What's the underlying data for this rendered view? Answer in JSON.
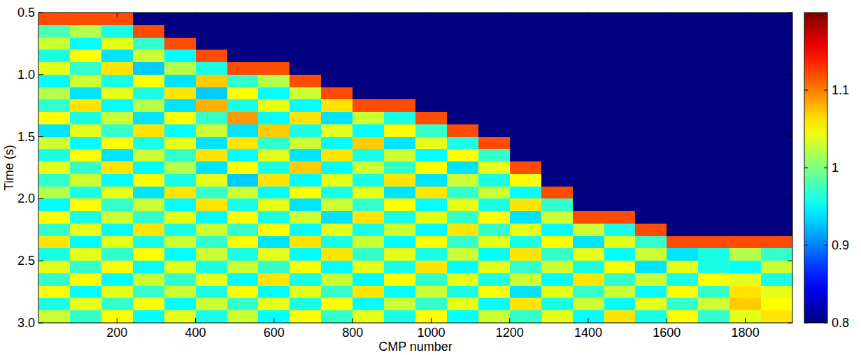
{
  "chart_data": {
    "type": "heatmap",
    "x_label": "CMP number",
    "y_label": "Time (s)",
    "xlim": [
      0,
      1920
    ],
    "ylim": [
      0.5,
      3.0
    ],
    "xticks": [
      200,
      400,
      600,
      800,
      1000,
      1200,
      1400,
      1600,
      1800
    ],
    "yticks": [
      0.5,
      {
        "value": 1.0,
        "label": "1.0"
      },
      1.5,
      {
        "value": 2.0,
        "label": "2.0"
      },
      2.5,
      {
        "value": 3.0,
        "label": "3.0"
      }
    ],
    "x_bins": [
      0,
      80,
      160,
      240,
      320,
      400,
      480,
      560,
      640,
      720,
      800,
      880,
      960,
      1040,
      1120,
      1200,
      1280,
      1360,
      1440,
      1520,
      1600,
      1680,
      1760,
      1840,
      1920
    ],
    "y_bins": [
      0.5,
      0.6,
      0.7,
      0.8,
      0.9,
      1.0,
      1.1,
      1.2,
      1.3,
      1.4,
      1.5,
      1.6,
      1.7,
      1.8,
      1.9,
      2.0,
      2.1,
      2.2,
      2.3,
      2.4,
      2.5,
      2.6,
      2.7,
      2.8,
      2.9,
      3.0
    ],
    "color": "jet",
    "colorbar": {
      "range": [
        0.8,
        1.2
      ],
      "ticks": [
        0.8,
        0.9,
        1,
        1.1
      ]
    },
    "values": [
      [
        1.12,
        1.12,
        1.12,
        0.8,
        0.8,
        0.8,
        0.8,
        0.8,
        0.8,
        0.8,
        0.8,
        0.8,
        0.8,
        0.8,
        0.8,
        0.8,
        0.8,
        0.8,
        0.8,
        0.8,
        0.8,
        0.8,
        0.8,
        0.8
      ],
      [
        0.98,
        1.02,
        0.96,
        1.12,
        0.8,
        0.8,
        0.8,
        0.8,
        0.8,
        0.8,
        0.8,
        0.8,
        0.8,
        0.8,
        0.8,
        0.8,
        0.8,
        0.8,
        0.8,
        0.8,
        0.8,
        0.8,
        0.8,
        0.8
      ],
      [
        1.03,
        0.95,
        1.04,
        0.97,
        1.12,
        0.8,
        0.8,
        0.8,
        0.8,
        0.8,
        0.8,
        0.8,
        0.8,
        0.8,
        0.8,
        0.8,
        0.8,
        0.8,
        0.8,
        0.8,
        0.8,
        0.8,
        0.8,
        0.8
      ],
      [
        0.96,
        1.05,
        0.94,
        1.03,
        0.95,
        1.12,
        0.8,
        0.8,
        0.8,
        0.8,
        0.8,
        0.8,
        0.8,
        0.8,
        0.8,
        0.8,
        0.8,
        0.8,
        0.8,
        0.8,
        0.8,
        0.8,
        0.8,
        0.8
      ],
      [
        1.04,
        0.97,
        1.06,
        0.93,
        1.02,
        0.96,
        1.12,
        1.12,
        0.8,
        0.8,
        0.8,
        0.8,
        0.8,
        0.8,
        0.8,
        0.8,
        0.8,
        0.8,
        0.8,
        0.8,
        0.8,
        0.8,
        0.8,
        0.8
      ],
      [
        0.95,
        1.03,
        0.96,
        1.05,
        0.94,
        1.07,
        0.97,
        1.02,
        1.12,
        0.8,
        0.8,
        0.8,
        0.8,
        0.8,
        0.8,
        0.8,
        0.8,
        0.8,
        0.8,
        0.8,
        0.8,
        0.8,
        0.8,
        0.8
      ],
      [
        1.02,
        0.94,
        1.04,
        0.96,
        1.06,
        0.93,
        1.05,
        0.95,
        1.03,
        1.12,
        0.8,
        0.8,
        0.8,
        0.8,
        0.8,
        0.8,
        0.8,
        0.8,
        0.8,
        0.8,
        0.8,
        0.8,
        0.8,
        0.8
      ],
      [
        0.97,
        1.06,
        0.95,
        1.02,
        0.94,
        1.08,
        0.96,
        1.04,
        0.95,
        1.06,
        1.12,
        1.12,
        0.8,
        0.8,
        0.8,
        0.8,
        0.8,
        0.8,
        0.8,
        0.8,
        0.8,
        0.8,
        0.8,
        0.8
      ],
      [
        1.05,
        0.96,
        1.03,
        0.94,
        1.05,
        0.97,
        1.09,
        0.95,
        1.06,
        0.94,
        1.03,
        0.96,
        1.12,
        0.8,
        0.8,
        0.8,
        0.8,
        0.8,
        0.8,
        0.8,
        0.8,
        0.8,
        0.8,
        0.8
      ],
      [
        0.94,
        1.04,
        0.97,
        1.06,
        0.95,
        1.03,
        0.94,
        1.07,
        0.96,
        1.04,
        0.95,
        1.05,
        0.97,
        1.12,
        0.8,
        0.8,
        0.8,
        0.8,
        0.8,
        0.8,
        0.8,
        0.8,
        0.8,
        0.8
      ],
      [
        1.03,
        0.95,
        1.05,
        0.96,
        1.04,
        0.94,
        1.06,
        0.97,
        1.03,
        0.95,
        1.07,
        0.94,
        1.04,
        0.96,
        1.12,
        0.8,
        0.8,
        0.8,
        0.8,
        0.8,
        0.8,
        0.8,
        0.8,
        0.8
      ],
      [
        0.96,
        1.05,
        0.94,
        1.03,
        0.97,
        1.06,
        0.95,
        1.04,
        0.94,
        1.06,
        0.96,
        1.03,
        0.95,
        1.05,
        0.97,
        0.8,
        0.8,
        0.8,
        0.8,
        0.8,
        0.8,
        0.8,
        0.8,
        0.8
      ],
      [
        1.04,
        0.97,
        1.06,
        0.95,
        1.02,
        0.94,
        1.05,
        0.96,
        1.07,
        0.95,
        1.03,
        0.97,
        1.05,
        0.94,
        1.04,
        1.12,
        0.8,
        0.8,
        0.8,
        0.8,
        0.8,
        0.8,
        0.8,
        0.8
      ],
      [
        0.97,
        1.03,
        0.95,
        1.05,
        0.96,
        1.04,
        0.93,
        1.06,
        0.95,
        1.04,
        0.96,
        1.06,
        0.94,
        1.03,
        0.96,
        1.05,
        0.8,
        0.8,
        0.8,
        0.8,
        0.8,
        0.8,
        0.8,
        0.8
      ],
      [
        1.02,
        0.96,
        1.04,
        0.94,
        1.06,
        0.97,
        1.03,
        0.95,
        1.05,
        0.96,
        1.04,
        0.94,
        1.06,
        0.97,
        1.03,
        0.95,
        1.12,
        0.8,
        0.8,
        0.8,
        0.8,
        0.8,
        0.8,
        0.8
      ],
      [
        0.95,
        1.05,
        0.97,
        1.03,
        0.95,
        1.06,
        0.96,
        1.04,
        0.94,
        1.03,
        0.97,
        1.05,
        0.95,
        1.04,
        0.96,
        1.06,
        0.97,
        0.8,
        0.8,
        0.8,
        0.8,
        0.8,
        0.8,
        0.8
      ],
      [
        1.05,
        0.96,
        1.03,
        0.97,
        1.04,
        0.95,
        1.05,
        0.96,
        1.03,
        0.94,
        1.06,
        0.96,
        1.04,
        0.97,
        1.05,
        0.94,
        1.03,
        1.12,
        1.12,
        0.8,
        0.8,
        0.8,
        0.8,
        0.8
      ],
      [
        0.97,
        1.04,
        0.95,
        1.06,
        0.96,
        1.03,
        0.97,
        1.05,
        0.95,
        1.04,
        0.96,
        1.03,
        0.95,
        1.06,
        0.97,
        1.04,
        0.95,
        1.03,
        0.96,
        1.12,
        0.8,
        0.8,
        0.8,
        0.8
      ],
      [
        1.06,
        0.95,
        1.04,
        0.96,
        1.03,
        0.97,
        1.05,
        0.94,
        1.06,
        0.96,
        1.03,
        0.95,
        1.05,
        0.97,
        1.04,
        0.96,
        1.05,
        0.94,
        1.04,
        0.97,
        1.12,
        1.12,
        1.12,
        1.12
      ],
      [
        0.96,
        1.04,
        0.97,
        1.05,
        0.95,
        1.03,
        0.96,
        1.04,
        0.95,
        1.06,
        0.97,
        1.04,
        0.96,
        1.03,
        0.95,
        1.06,
        0.97,
        1.04,
        0.95,
        1.03,
        0.94,
        0.96,
        1.02,
        0.97
      ],
      [
        1.04,
        0.97,
        1.05,
        0.95,
        1.04,
        0.96,
        1.03,
        0.97,
        1.05,
        0.95,
        1.04,
        0.96,
        1.06,
        0.95,
        1.04,
        0.97,
        1.03,
        0.96,
        1.05,
        0.94,
        1.04,
        0.96,
        0.95,
        1.03
      ],
      [
        0.97,
        1.05,
        0.95,
        1.03,
        0.97,
        1.04,
        0.95,
        1.06,
        0.96,
        1.03,
        0.95,
        1.05,
        0.97,
        1.04,
        0.96,
        1.03,
        0.95,
        1.06,
        0.97,
        1.03,
        0.96,
        1.05,
        1.04,
        0.96
      ],
      [
        1.05,
        0.95,
        1.04,
        0.97,
        1.03,
        0.96,
        1.05,
        0.95,
        1.04,
        0.97,
        1.06,
        0.95,
        1.03,
        0.96,
        1.05,
        0.94,
        1.04,
        0.97,
        1.03,
        0.95,
        1.05,
        0.97,
        1.06,
        1.04
      ],
      [
        0.96,
        1.04,
        0.97,
        1.05,
        0.95,
        1.03,
        0.97,
        1.04,
        0.96,
        1.05,
        0.95,
        1.03,
        0.97,
        1.04,
        0.95,
        1.06,
        0.96,
        1.03,
        0.95,
        1.04,
        0.97,
        1.03,
        1.07,
        1.05
      ],
      [
        1.03,
        0.97,
        1.05,
        0.95,
        1.04,
        0.96,
        1.03,
        0.95,
        1.05,
        0.97,
        1.04,
        0.96,
        1.05,
        0.95,
        1.03,
        0.97,
        1.04,
        0.95,
        1.06,
        0.96,
        1.05,
        0.97,
        1.04,
        1.06
      ]
    ]
  }
}
